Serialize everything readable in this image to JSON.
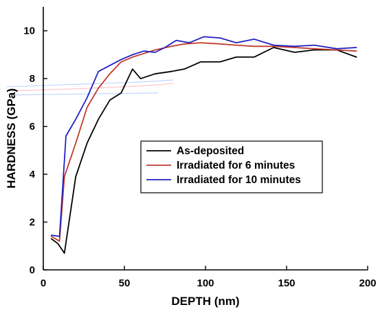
{
  "chart_data": {
    "type": "line",
    "title": "",
    "xlabel": "DEPTH (nm)",
    "ylabel": "HARDNESS (GPa)",
    "xlim": [
      0,
      200
    ],
    "ylim": [
      0,
      11
    ],
    "xticks": [
      0,
      50,
      100,
      150,
      200
    ],
    "yticks": [
      0,
      2,
      4,
      6,
      8,
      10
    ],
    "grid": false,
    "legend_position": "center-right",
    "series": [
      {
        "name": "As-deposited",
        "color": "#000000",
        "x": [
          5,
          9,
          13,
          20,
          27,
          34,
          41,
          48,
          55,
          60,
          69,
          79,
          87,
          97,
          109,
          119,
          130,
          142,
          155,
          167,
          181,
          193
        ],
        "y": [
          1.3,
          1.1,
          0.7,
          3.9,
          5.3,
          6.3,
          7.1,
          7.4,
          8.4,
          8.0,
          8.2,
          8.3,
          8.4,
          8.7,
          8.7,
          8.9,
          8.9,
          9.3,
          9.1,
          9.2,
          9.2,
          8.9
        ]
      },
      {
        "name": "Irradiated for 6 minutes",
        "color": "#c0392b",
        "x": [
          5,
          10,
          13,
          20,
          27,
          34,
          41,
          48,
          55,
          62,
          69,
          79,
          87,
          97,
          109,
          119,
          130,
          142,
          155,
          167,
          181,
          193
        ],
        "y": [
          1.4,
          1.2,
          3.9,
          5.3,
          6.8,
          7.6,
          8.2,
          8.7,
          8.9,
          9.05,
          9.2,
          9.35,
          9.45,
          9.5,
          9.45,
          9.4,
          9.35,
          9.35,
          9.3,
          9.25,
          9.2,
          9.15
        ]
      },
      {
        "name": "Irradiated for 10 minutes",
        "color": "#2020c0",
        "x": [
          5,
          10,
          14,
          20,
          27,
          34,
          41,
          48,
          55,
          62,
          69,
          75,
          82,
          90,
          99,
          109,
          119,
          130,
          142,
          155,
          167,
          181,
          193
        ],
        "y": [
          1.45,
          1.4,
          5.6,
          6.3,
          7.2,
          8.3,
          8.55,
          8.8,
          9.0,
          9.15,
          9.1,
          9.3,
          9.6,
          9.5,
          9.75,
          9.7,
          9.5,
          9.65,
          9.4,
          9.35,
          9.4,
          9.25,
          9.3
        ]
      }
    ]
  }
}
